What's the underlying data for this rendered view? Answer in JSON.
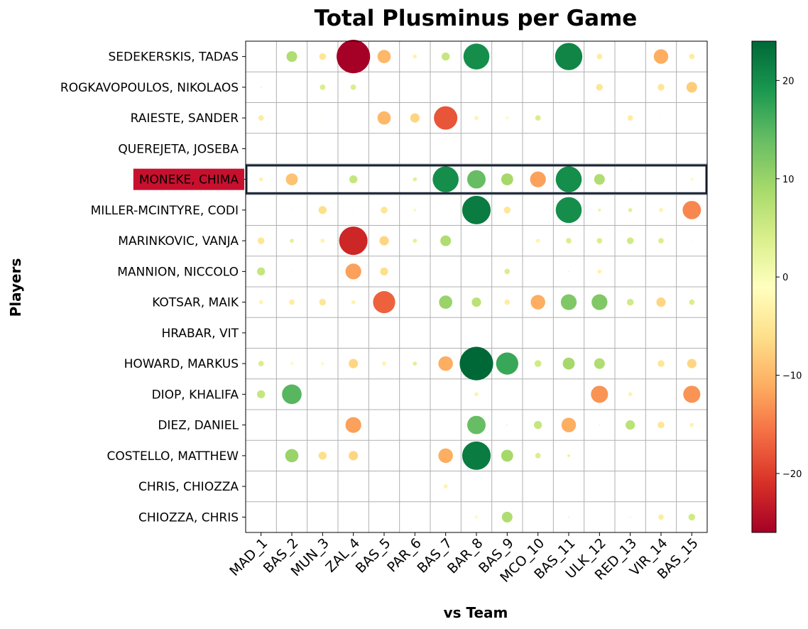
{
  "chart_data": {
    "type": "scatter",
    "title": "Total Plusminus per Game",
    "xlabel": "vs Team",
    "ylabel": "Players",
    "grid": true,
    "highlighted_player": "MONEKE, CHIMA",
    "categories": [
      "MAD_1",
      "BAS_2",
      "MUN_3",
      "ZAL_4",
      "BAS_5",
      "PAR_6",
      "BAS_7",
      "BAR_8",
      "BAS_9",
      "MCO_10",
      "BAS_11",
      "ULK_12",
      "RED_13",
      "VIR_14",
      "BAS_15"
    ],
    "players": [
      "SEDEKERSKIS, TADAS",
      "ROGKAVOPOULOS, NIKOLAOS",
      "RAIESTE, SANDER",
      "QUEREJETA, JOSEBA",
      "MONEKE, CHIMA",
      "MILLER-MCINTYRE, CODI",
      "MARINKOVIC, VANJA",
      "MANNION, NICCOLO",
      "KOTSAR, MAIK",
      "HRABAR, VIT",
      "HOWARD, MARKUS",
      "DIOP, KHALIFA",
      "DIEZ, DANIEL",
      "COSTELLO, MATTHEW",
      "CHRIS, CHIOZZA",
      "CHIOZZA, CHRIS"
    ],
    "values": [
      [
        null,
        8,
        -5,
        -26,
        -10,
        -3,
        6,
        20,
        null,
        null,
        21,
        -4,
        null,
        -11,
        -4
      ],
      [
        1,
        null,
        4,
        4,
        null,
        null,
        null,
        null,
        null,
        null,
        null,
        -5,
        -1,
        -5,
        -8
      ],
      [
        -4,
        null,
        -1,
        null,
        -10,
        -7,
        -18,
        -3,
        -2,
        4,
        null,
        null,
        -4,
        -1,
        null
      ],
      [
        null,
        null,
        null,
        null,
        null,
        null,
        null,
        null,
        null,
        null,
        null,
        null,
        null,
        null,
        null
      ],
      [
        -3,
        -9,
        null,
        6,
        null,
        3,
        20,
        14,
        9,
        -12,
        20,
        8,
        -1,
        null,
        -2
      ],
      [
        null,
        -1,
        -6,
        -1,
        -5,
        -2,
        -1,
        22,
        -5,
        null,
        20,
        2,
        3,
        -3,
        -14
      ],
      [
        -5,
        3,
        -3,
        -22,
        -7,
        3,
        8,
        null,
        null,
        -3,
        4,
        4,
        5,
        4,
        -1
      ],
      [
        6,
        -1,
        null,
        -12,
        -6,
        null,
        null,
        null,
        4,
        null,
        1,
        -3,
        null,
        null,
        null
      ],
      [
        -3,
        -4,
        -5,
        -3,
        -17,
        null,
        10,
        7,
        -4,
        -11,
        12,
        12,
        5,
        -7,
        4
      ],
      [
        null,
        null,
        null,
        null,
        null,
        null,
        null,
        null,
        null,
        null,
        null,
        null,
        null,
        null,
        null
      ],
      [
        4,
        -2,
        -2,
        -7,
        -3,
        3,
        -11,
        26,
        17,
        5,
        9,
        8,
        null,
        -5,
        -7
      ],
      [
        6,
        15,
        null,
        null,
        null,
        null,
        null,
        -3,
        null,
        null,
        null,
        -13,
        -3,
        null,
        -13
      ],
      [
        null,
        null,
        null,
        -12,
        null,
        null,
        null,
        14,
        1,
        6,
        -11,
        1,
        7,
        -5,
        -3
      ],
      [
        null,
        10,
        -6,
        -7,
        null,
        null,
        -11,
        22,
        9,
        4,
        2,
        null,
        null,
        null,
        null
      ],
      [
        null,
        null,
        null,
        null,
        null,
        null,
        -3,
        null,
        null,
        null,
        null,
        null,
        null,
        null,
        null
      ],
      [
        null,
        null,
        null,
        null,
        null,
        null,
        null,
        -2,
        8,
        null,
        1,
        null,
        1,
        -4,
        5
      ]
    ],
    "colorbar": {
      "colormap": "RdYlGn",
      "range": [
        -26,
        24
      ],
      "ticks": [
        "20",
        "10",
        "0",
        "−10",
        "−20"
      ],
      "tick_values": [
        20,
        10,
        0,
        -10,
        -20
      ]
    }
  }
}
